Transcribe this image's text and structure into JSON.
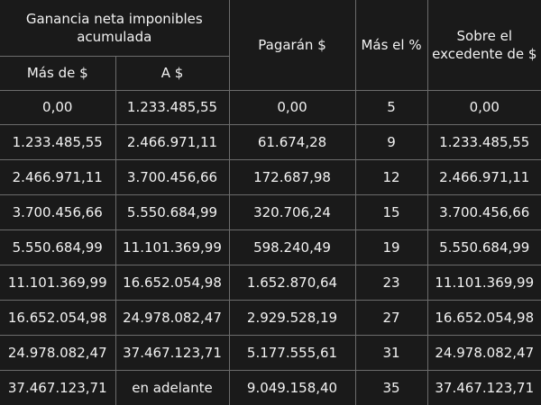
{
  "table": {
    "header": {
      "group_label": "Ganancia neta imponibles acumulada",
      "from_label": "Más de $",
      "to_label": "A $",
      "pay_label": "Pagarán $",
      "rate_label": "Más el %",
      "over_label": "Sobre el excedente de $"
    },
    "rows": [
      [
        "0,00",
        "1.233.485,55",
        "0,00",
        "5",
        "0,00"
      ],
      [
        "1.233.485,55",
        "2.466.971,11",
        "61.674,28",
        "9",
        "1.233.485,55"
      ],
      [
        "2.466.971,11",
        "3.700.456,66",
        "172.687,98",
        "12",
        "2.466.971,11"
      ],
      [
        "3.700.456,66",
        "5.550.684,99",
        "320.706,24",
        "15",
        "3.700.456,66"
      ],
      [
        "5.550.684,99",
        "11.101.369,99",
        "598.240,49",
        "19",
        "5.550.684,99"
      ],
      [
        "11.101.369,99",
        "16.652.054,98",
        "1.652.870,64",
        "23",
        "11.101.369,99"
      ],
      [
        "16.652.054,98",
        "24.978.082,47",
        "2.929.528,19",
        "27",
        "16.652.054,98"
      ],
      [
        "24.978.082,47",
        "37.467.123,71",
        "5.177.555,61",
        "31",
        "24.978.082,47"
      ],
      [
        "37.467.123,71",
        "en adelante",
        "9.049.158,40",
        "35",
        "37.467.123,71"
      ]
    ]
  }
}
